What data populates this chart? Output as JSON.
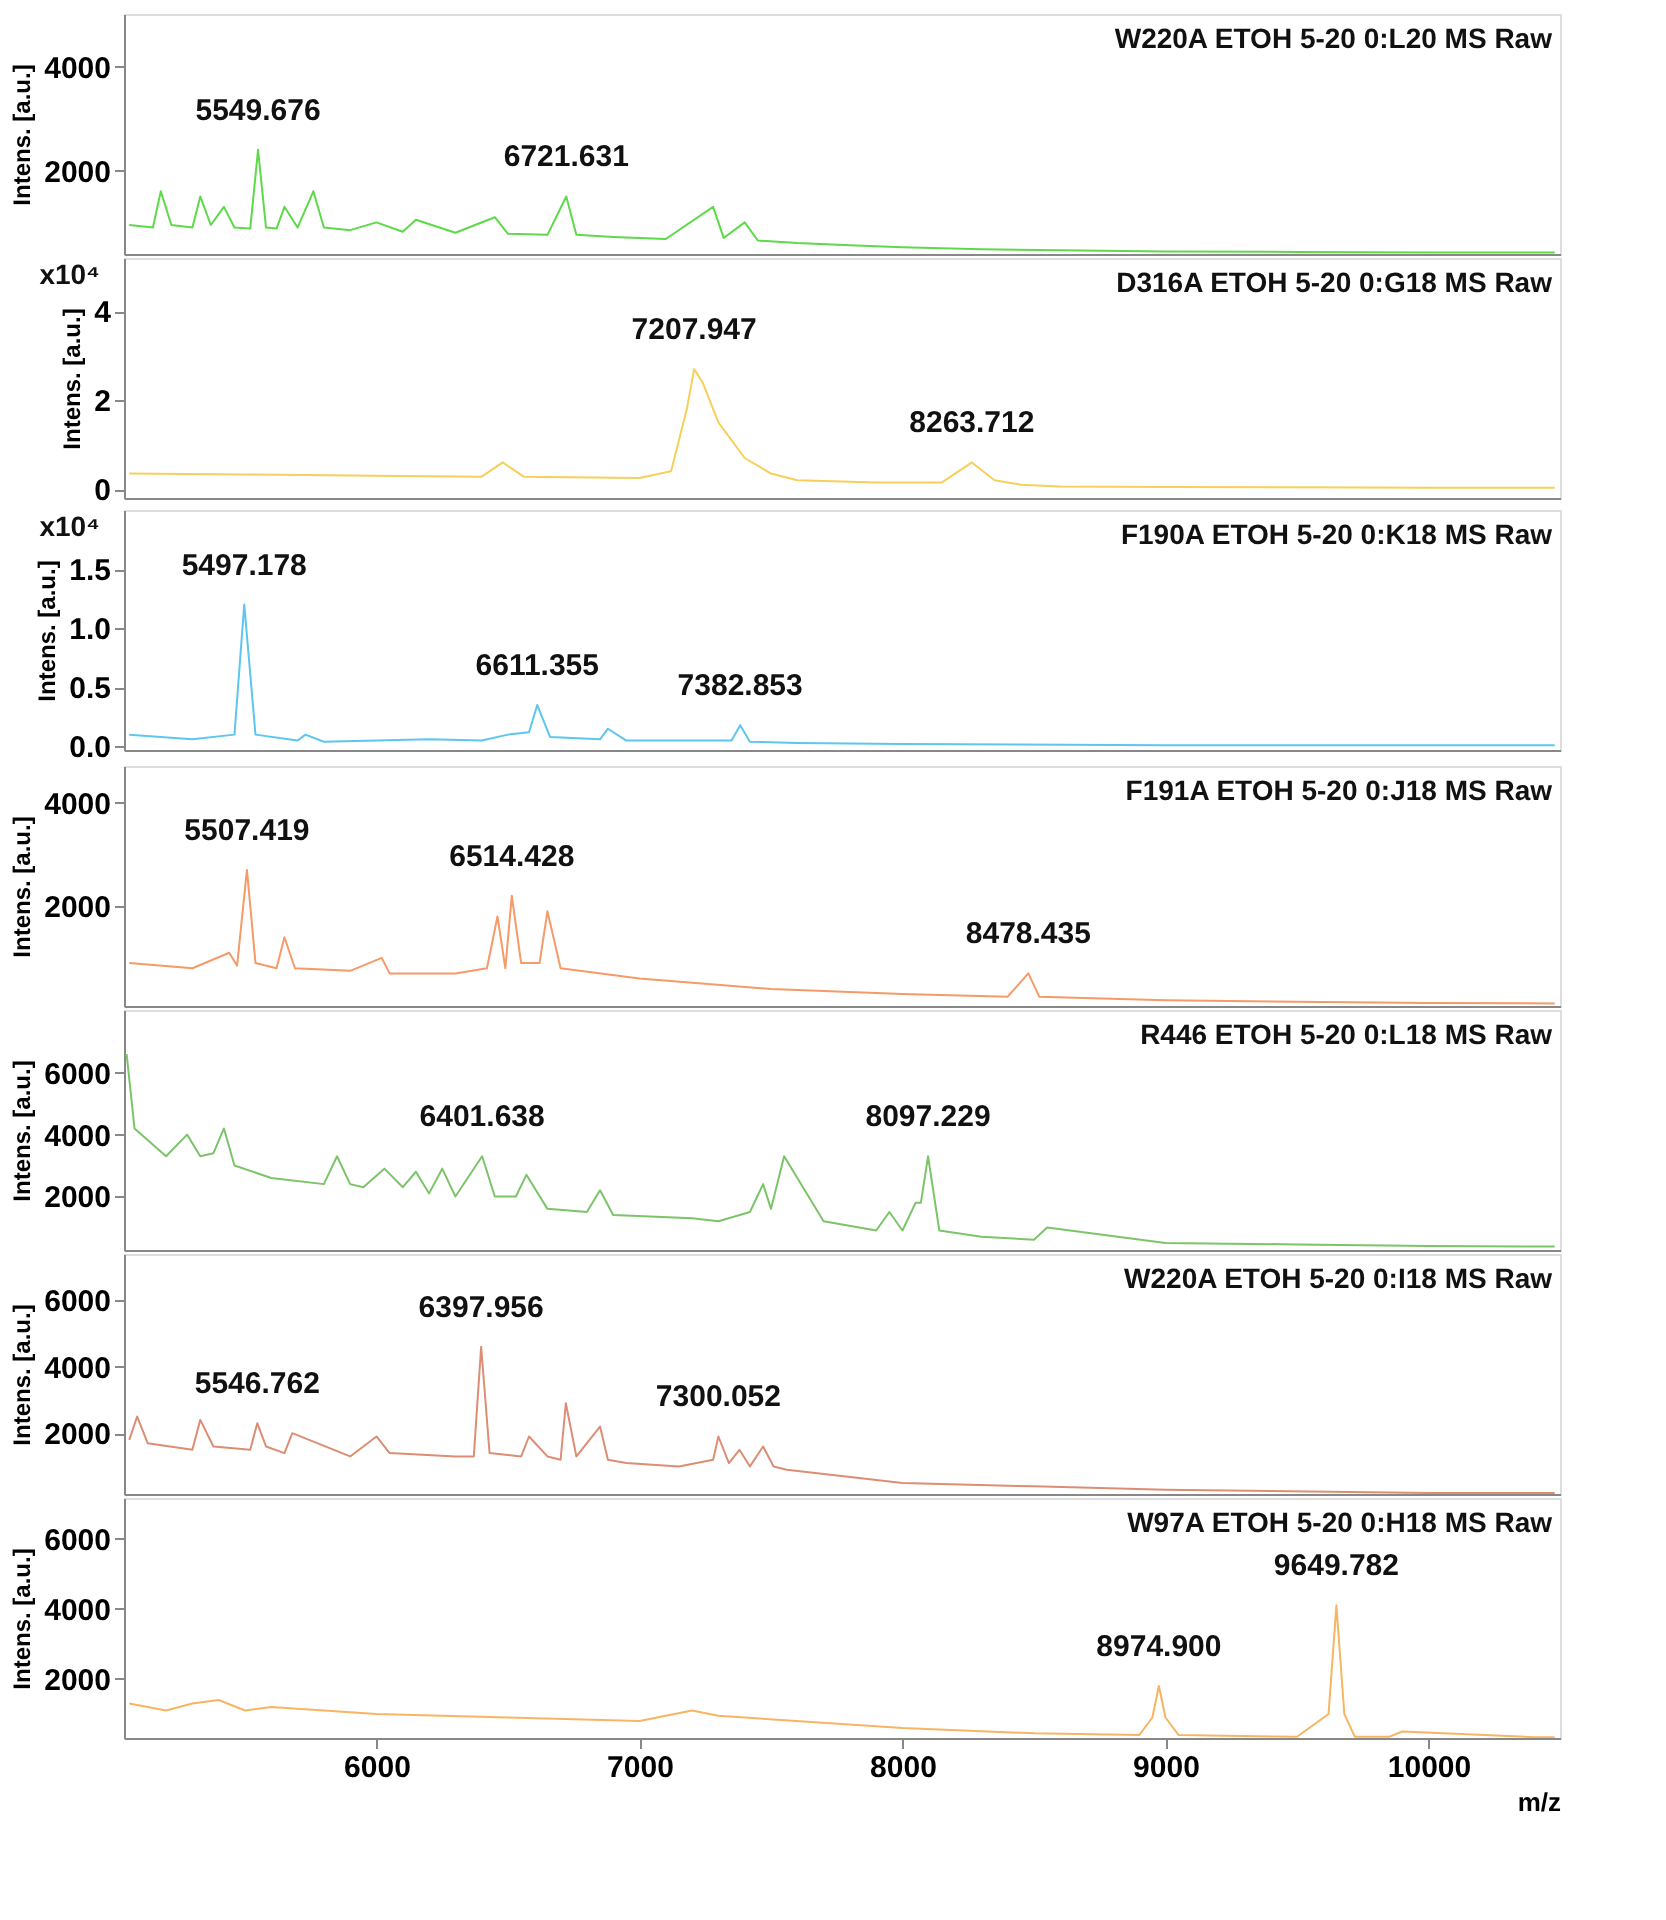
{
  "chart_data": [
    {
      "type": "line",
      "title": "W220A ETOH 5-20 0:L20 MS Raw",
      "ylabel": "Intens. [a.u.]",
      "xlim": [
        5040,
        10500
      ],
      "xticks": [
        6000,
        7000,
        8000,
        9000,
        10000
      ],
      "ylim": [
        390,
        5020
      ],
      "yticks": [
        2000,
        4000
      ],
      "tick_labels": "y",
      "grid": false,
      "x": [
        5060,
        5150,
        5180,
        5220,
        5300,
        5330,
        5370,
        5420,
        5460,
        5520,
        5549.676,
        5580,
        5620,
        5650,
        5700,
        5760,
        5800,
        5900,
        6000,
        6100,
        6150,
        6300,
        6450,
        6500,
        6650,
        6721.631,
        6760,
        6900,
        7100,
        7280,
        7320,
        7400,
        7450,
        7600,
        7800,
        8000,
        8300,
        8600,
        9000,
        9500,
        10000,
        10480
      ],
      "series": [
        {
          "color": "#5ed94a",
          "values": [
            950,
            900,
            1600,
            950,
            900,
            1500,
            950,
            1300,
            900,
            880,
            2400,
            900,
            880,
            1300,
            900,
            1600,
            900,
            850,
            1000,
            820,
            1050,
            800,
            1100,
            780,
            760,
            1500,
            760,
            720,
            680,
            1300,
            700,
            1000,
            650,
            600,
            560,
            520,
            480,
            460,
            440,
            430,
            420,
            420
          ]
        }
      ],
      "annotations": [
        {
          "text": "5549.676",
          "x": 5549.676,
          "y": 2400
        },
        {
          "text": "6721.631",
          "x": 6721.631,
          "y": 1500
        }
      ]
    },
    {
      "type": "line",
      "title": "D316A ETOH 5-20 0:G18 MS Raw",
      "ylabel": "Intens. [a.u.]",
      "xlim": [
        5040,
        10500
      ],
      "xticks": [
        6000,
        7000,
        8000,
        9000,
        10000
      ],
      "ylim": [
        -0.2,
        5.2
      ],
      "yticks": [
        0,
        2,
        4
      ],
      "tick_labels": "y",
      "grid": false,
      "x": [
        5060,
        5500,
        6000,
        6400,
        6480,
        6560,
        7000,
        7120,
        7180,
        7207.947,
        7240,
        7300,
        7400,
        7500,
        7600,
        7900,
        8150,
        8263.712,
        8350,
        8450,
        8600,
        9000,
        9500,
        10000,
        10480
      ],
      "series": [
        {
          "color": "#f7cf5a",
          "values": [
            0.35,
            0.33,
            0.3,
            0.28,
            0.6,
            0.28,
            0.25,
            0.4,
            1.8,
            2.7,
            2.4,
            1.5,
            0.7,
            0.35,
            0.2,
            0.15,
            0.15,
            0.6,
            0.2,
            0.1,
            0.06,
            0.05,
            0.04,
            0.03,
            0.03
          ]
        }
      ],
      "annotations": [
        "x10⁴",
        {
          "text": "7207.947",
          "x": 7207.947,
          "y": 2.7
        },
        {
          "text": "8263.712",
          "x": 8263.712,
          "y": 0.6
        }
      ]
    },
    {
      "type": "line",
      "title": "F190A ETOH 5-20 0:K18 MS Raw",
      "ylabel": "Intens. [a.u.]",
      "xlim": [
        5040,
        10500
      ],
      "xticks": [
        6000,
        7000,
        8000,
        9000,
        10000
      ],
      "ylim": [
        -0.03,
        2.0
      ],
      "yticks": [
        {
          "value": 0,
          "label": "0.0"
        },
        {
          "value": 0.5,
          "label": "0.5"
        },
        {
          "value": 1,
          "label": "1.0"
        },
        {
          "value": 1.5,
          "label": "1.5"
        }
      ],
      "tick_labels": "y",
      "grid": false,
      "x": [
        5060,
        5300,
        5460,
        5497.178,
        5540,
        5700,
        5730,
        5800,
        6000,
        6200,
        6400,
        6500,
        6580,
        6611.355,
        6660,
        6850,
        6880,
        6950,
        7200,
        7350,
        7382.853,
        7420,
        7600,
        8000,
        9000,
        10480
      ],
      "series": [
        {
          "color": "#5cc6ef",
          "values": [
            0.1,
            0.06,
            0.1,
            1.2,
            0.1,
            0.05,
            0.1,
            0.04,
            0.05,
            0.06,
            0.05,
            0.1,
            0.12,
            0.35,
            0.08,
            0.06,
            0.15,
            0.05,
            0.05,
            0.05,
            0.18,
            0.04,
            0.03,
            0.02,
            0.01,
            0.01
          ]
        }
      ],
      "annotations": [
        "x10⁴",
        {
          "text": "5497.178",
          "x": 5497.178,
          "y": 1.2
        },
        {
          "text": "6611.355",
          "x": 6611.355,
          "y": 0.35
        },
        {
          "text": "7382.853",
          "x": 7382.853,
          "y": 0.18
        }
      ]
    },
    {
      "type": "line",
      "title": "F191A ETOH 5-20 0:J18 MS Raw",
      "ylabel": "Intens. [a.u.]",
      "xlim": [
        5040,
        10500
      ],
      "xticks": [
        6000,
        7000,
        8000,
        9000,
        10000
      ],
      "ylim": [
        70,
        4710
      ],
      "yticks": [
        2000,
        4000
      ],
      "tick_labels": "y",
      "grid": false,
      "x": [
        5060,
        5300,
        5440,
        5470,
        5507.419,
        5540,
        5620,
        5650,
        5690,
        5900,
        6020,
        6050,
        6300,
        6420,
        6460,
        6490,
        6514.428,
        6550,
        6620,
        6650,
        6700,
        7000,
        7500,
        8000,
        8400,
        8478.435,
        8520,
        9000,
        9500,
        10000,
        10480
      ],
      "series": [
        {
          "color": "#f59a68",
          "values": [
            900,
            800,
            1100,
            850,
            2700,
            900,
            800,
            1400,
            800,
            750,
            1000,
            700,
            700,
            800,
            1800,
            800,
            2200,
            900,
            900,
            1900,
            800,
            600,
            400,
            300,
            250,
            700,
            250,
            180,
            150,
            130,
            120
          ]
        }
      ],
      "annotations": [
        {
          "text": "5507.419",
          "x": 5507.419,
          "y": 2700
        },
        {
          "text": "6514.428",
          "x": 6514.428,
          "y": 2200
        },
        {
          "text": "8478.435",
          "x": 8478.435,
          "y": 700
        }
      ]
    },
    {
      "type": "line",
      "title": "R446 ETOH 5-20 0:L18 MS Raw",
      "ylabel": "Intens. [a.u.]",
      "xlim": [
        5040,
        10500
      ],
      "xticks": [
        6000,
        7000,
        8000,
        9000,
        10000
      ],
      "ylim": [
        270,
        8030
      ],
      "yticks": [
        2000,
        4000,
        6000
      ],
      "tick_labels": "y",
      "grid": false,
      "x": [
        5050,
        5080,
        5120,
        5200,
        5280,
        5330,
        5380,
        5420,
        5460,
        5600,
        5800,
        5850,
        5900,
        5950,
        6030,
        6100,
        6150,
        6200,
        6250,
        6300,
        6401.638,
        6450,
        6530,
        6570,
        6650,
        6800,
        6850,
        6900,
        7200,
        7300,
        7420,
        7470,
        7500,
        7550,
        7700,
        7900,
        7950,
        8000,
        8050,
        8070,
        8097.229,
        8140,
        8300,
        8500,
        8550,
        9000,
        9500,
        10000,
        10480
      ],
      "series": [
        {
          "color": "#7cc46a",
          "values": [
            6600,
            4200,
            3900,
            3300,
            4000,
            3300,
            3400,
            4200,
            3000,
            2600,
            2400,
            3300,
            2400,
            2300,
            2900,
            2300,
            2800,
            2100,
            2900,
            2000,
            3300,
            2000,
            2000,
            2700,
            1600,
            1500,
            2200,
            1400,
            1300,
            1200,
            1500,
            2400,
            1600,
            3300,
            1200,
            900,
            1500,
            900,
            1800,
            1800,
            3300,
            900,
            700,
            600,
            1000,
            500,
            450,
            400,
            380
          ]
        }
      ],
      "annotations": [
        {
          "text": "6401.638",
          "x": 6401.638,
          "y": 3300
        },
        {
          "text": "8097.229",
          "x": 8097.229,
          "y": 3300
        }
      ]
    },
    {
      "type": "line",
      "title": "W220A ETOH 5-20 0:I18 MS Raw",
      "ylabel": "Intens. [a.u.]",
      "xlim": [
        5040,
        10500
      ],
      "xticks": [
        6000,
        7000,
        8000,
        9000,
        10000
      ],
      "ylim": [
        170,
        7390
      ],
      "yticks": [
        2000,
        4000,
        6000
      ],
      "tick_labels": "y",
      "grid": false,
      "x": [
        5060,
        5090,
        5130,
        5300,
        5330,
        5380,
        5520,
        5546.762,
        5580,
        5650,
        5680,
        5900,
        6000,
        6050,
        6300,
        6370,
        6397.956,
        6430,
        6550,
        6580,
        6650,
        6700,
        6720,
        6760,
        6850,
        6880,
        6950,
        7150,
        7280,
        7300,
        7340,
        7380,
        7420,
        7470,
        7510,
        7560,
        8000,
        8500,
        9000,
        10000,
        10480
      ],
      "series": [
        {
          "color": "#dc8e74",
          "values": [
            1800,
            2500,
            1700,
            1500,
            2400,
            1600,
            1500,
            2300,
            1600,
            1400,
            2000,
            1300,
            1900,
            1400,
            1300,
            1300,
            4600,
            1400,
            1300,
            1900,
            1300,
            1200,
            2900,
            1300,
            2200,
            1200,
            1100,
            1000,
            1200,
            1900,
            1100,
            1500,
            1000,
            1600,
            1000,
            900,
            500,
            400,
            300,
            200,
            200
          ]
        }
      ],
      "annotations": [
        {
          "text": "5546.762",
          "x": 5546.762,
          "y": 2300
        },
        {
          "text": "6397.956",
          "x": 6397.956,
          "y": 4600
        },
        {
          "text": "7300.052",
          "x": 7300.052,
          "y": 1900
        }
      ]
    },
    {
      "type": "line",
      "title": "W97A ETOH 5-20 0:H18 MS Raw",
      "ylabel": "Intens. [a.u.]",
      "xlabel": "m/z",
      "xlim": [
        5040,
        10500
      ],
      "xticks": [
        6000,
        7000,
        8000,
        9000,
        10000
      ],
      "ylim": [
        316,
        7160
      ],
      "yticks": [
        2000,
        4000,
        6000
      ],
      "grid": false,
      "x": [
        5060,
        5200,
        5300,
        5400,
        5500,
        5600,
        6000,
        6500,
        7000,
        7200,
        7300,
        7400,
        8000,
        8500,
        8900,
        8950,
        8974.9,
        9000,
        9050,
        9500,
        9620,
        9649.782,
        9680,
        9720,
        9850,
        9900,
        10400,
        10480
      ],
      "series": [
        {
          "color": "#f7b563",
          "values": [
            1300,
            1100,
            1300,
            1400,
            1100,
            1200,
            1000,
            900,
            800,
            1100,
            950,
            900,
            600,
            450,
            400,
            900,
            1800,
            900,
            400,
            350,
            1000,
            4100,
            1000,
            350,
            350,
            500,
            340,
            340
          ]
        }
      ],
      "annotations": [
        {
          "text": "8974.900",
          "x": 8974.9,
          "y": 1800
        },
        {
          "text": "9649.782",
          "x": 9649.782,
          "y": 4100
        }
      ]
    }
  ]
}
